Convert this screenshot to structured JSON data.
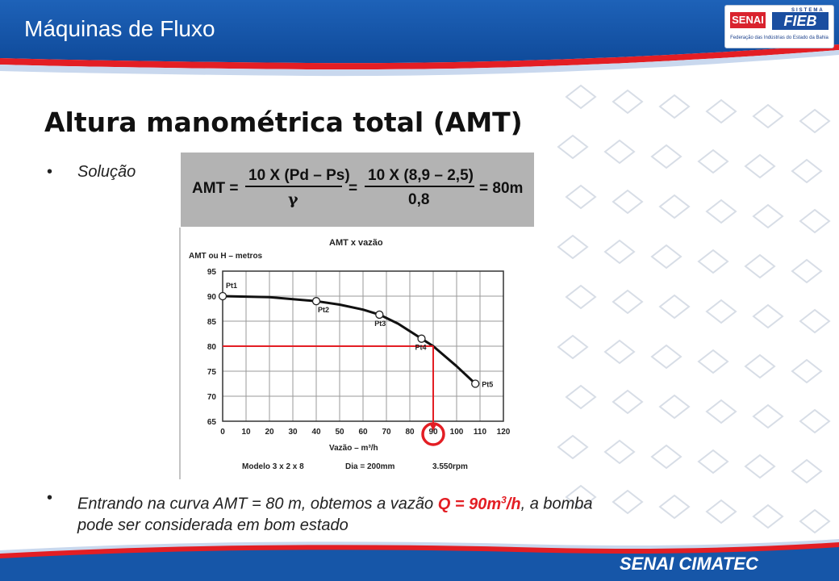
{
  "header": {
    "title": "Máquinas de Fluxo"
  },
  "logo": {
    "senai": "SENAI",
    "sistema": "SISTEMA",
    "fieb": "FIEB",
    "federacao": "Federação das Indústrias do Estado da Bahia"
  },
  "slide": {
    "title": "Altura manométrica total (AMT)",
    "bullet1": "Solução",
    "bullet2_part1": "Entrando na curva AMT = 80 m, obtemos a vazão ",
    "bullet2_highlight": "Q = 90m",
    "bullet2_sup": "3",
    "bullet2_highlight2": "/h",
    "bullet2_part2": ", a bomba",
    "bullet2_line2": "pode ser considerada em bom estado"
  },
  "formula": {
    "lhs": "AMT =",
    "num1": "10 X (Pd – Ps)",
    "den1": "γ",
    "eq": "=",
    "num2": "10 X (8,9 – 2,5)",
    "den2": "0,8",
    "result": "= 80m"
  },
  "chart_data": {
    "type": "line",
    "title": "AMT x vazão",
    "ylabel": "AMT ou H – metros",
    "xlabel": "Vazão – m³/h",
    "xlim": [
      0,
      120
    ],
    "ylim": [
      65,
      95
    ],
    "xticks": [
      "0",
      "10",
      "20",
      "30",
      "40",
      "50",
      "60",
      "70",
      "80",
      "90",
      "100",
      "110",
      "120"
    ],
    "yticks": [
      "65",
      "70",
      "75",
      "80",
      "85",
      "90",
      "95"
    ],
    "grid": true,
    "curve": {
      "x": [
        0,
        20,
        40,
        50,
        60,
        67,
        75,
        85,
        90,
        100,
        108
      ],
      "y": [
        90,
        89.8,
        89,
        88.3,
        87.3,
        86.3,
        84.5,
        81.5,
        80,
        76,
        72.5
      ]
    },
    "points": [
      {
        "label": "Pt1",
        "x": 0,
        "y": 90
      },
      {
        "label": "Pt2",
        "x": 40,
        "y": 89
      },
      {
        "label": "Pt3",
        "x": 67,
        "y": 86.3
      },
      {
        "label": "Pt4",
        "x": 85,
        "y": 81.5
      },
      {
        "label": "Pt5",
        "x": 108,
        "y": 72.5
      }
    ],
    "guide": {
      "amt": 80,
      "vazao": 90
    },
    "footer": [
      "Modelo 3 x 2 x 8",
      "Dia = 200mm",
      "3.550rpm"
    ],
    "colors": {
      "curve": "#111111",
      "guide": "#e31e24",
      "grid": "#9a9a9a"
    }
  },
  "footer": {
    "brand": "SENAI CIMATEC"
  },
  "colors": {
    "primary_blue": "#1656a8",
    "accent_red": "#e31e24",
    "formula_bg": "#b3b3b3"
  }
}
